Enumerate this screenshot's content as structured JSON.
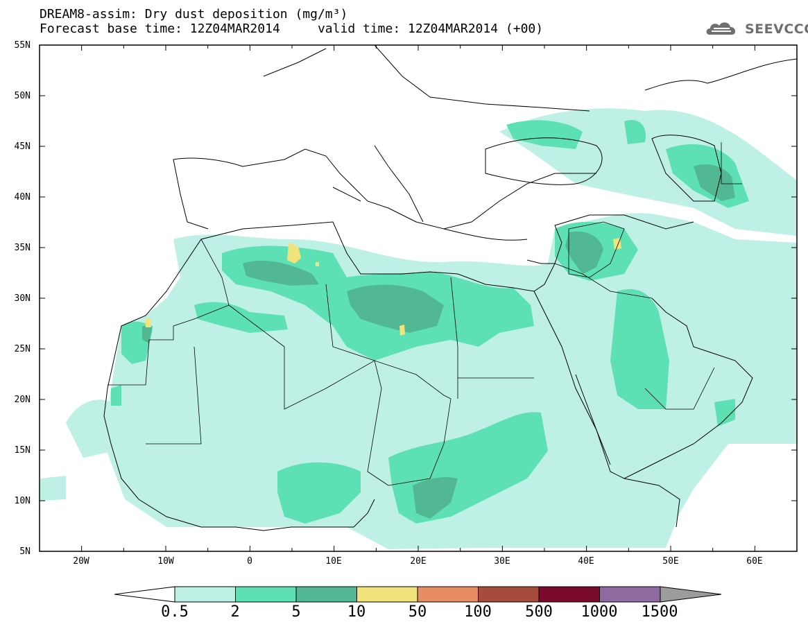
{
  "title": {
    "line1": "DREAM8-assim: Dry dust deposition (mg/m³)",
    "line2": "Forecast base time: 12Z04MAR2014     valid time: 12Z04MAR2014 (+00)"
  },
  "logo": {
    "text": "SEEVCCC",
    "icon": "cloud-logo-icon"
  },
  "map": {
    "lon_range": [
      -25,
      65
    ],
    "lat_range": [
      5,
      55
    ],
    "lat_labels": [
      "55N",
      "50N",
      "45N",
      "40N",
      "35N",
      "30N",
      "25N",
      "20N",
      "15N",
      "10N",
      "5N"
    ],
    "lon_labels": [
      "20W",
      "10W",
      "0",
      "10E",
      "20E",
      "30E",
      "40E",
      "50E",
      "60E"
    ]
  },
  "colorbar": {
    "labels": [
      "0.5",
      "2",
      "5",
      "10",
      "50",
      "100",
      "500",
      "1000",
      "1500"
    ],
    "colors": [
      "#bff0e6",
      "#5ee0b5",
      "#52b894",
      "#f1e47c",
      "#e88c64",
      "#a74c3c",
      "#7a0a2c",
      "#8e6aa0"
    ],
    "extend_low_color": "#ffffff",
    "extend_high_color": "#9c9c9c"
  }
}
